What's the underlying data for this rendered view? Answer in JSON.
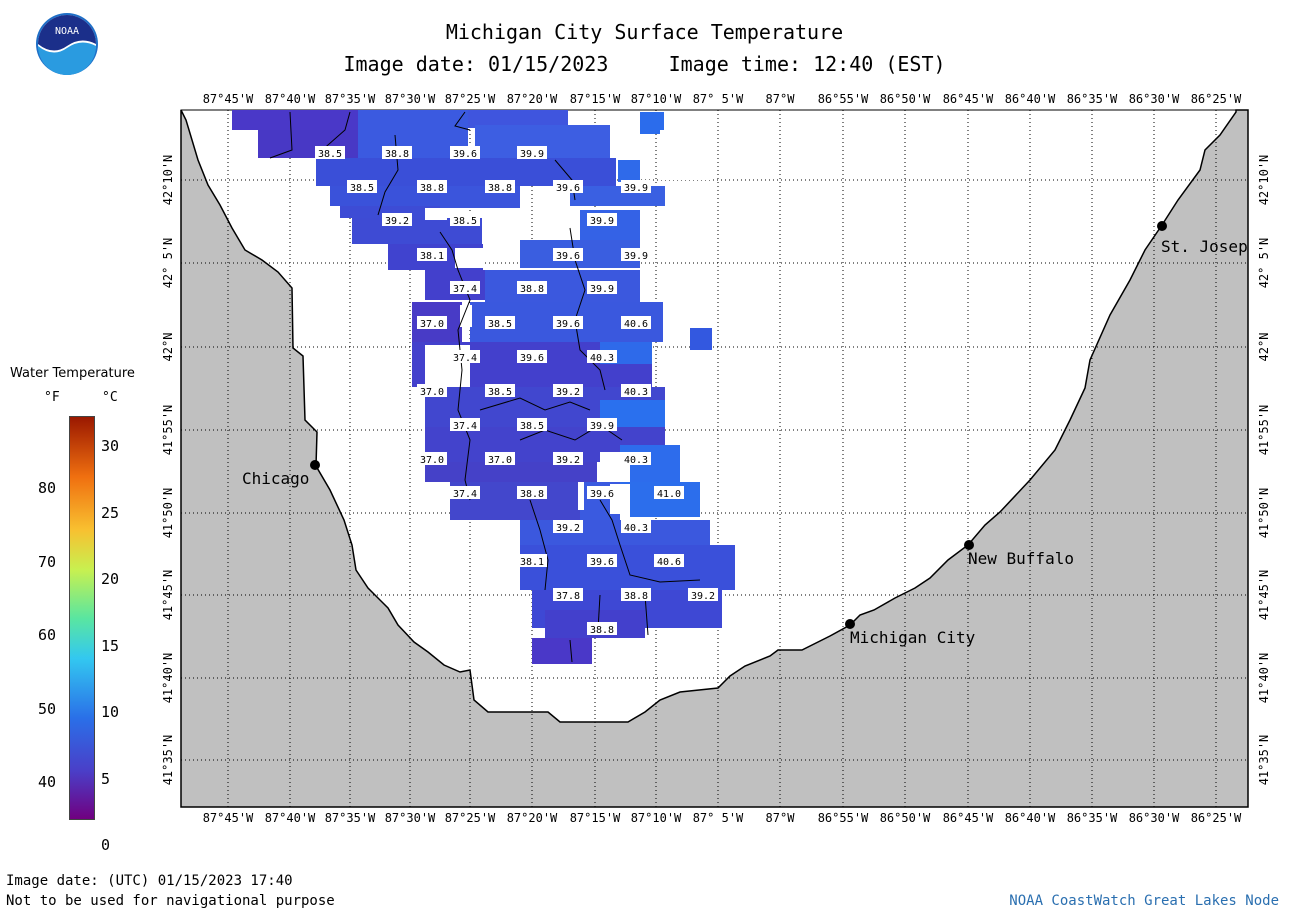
{
  "header": {
    "title": "Michigan City Surface Temperature",
    "date_line": "Image date: 01/15/2023     Image time: 12:40 (EST)"
  },
  "logo": {
    "text": "NOAA"
  },
  "legend": {
    "title": "Water Temperature",
    "unit_f": "°F",
    "unit_c": "°C",
    "f_ticks": [
      "80",
      "70",
      "60",
      "50",
      "40"
    ],
    "c_ticks": [
      "30",
      "25",
      "20",
      "15",
      "10",
      "5",
      "0"
    ]
  },
  "axes": {
    "lon_labels": [
      "87°45'W",
      "87°40'W",
      "87°35'W",
      "87°30'W",
      "87°25'W",
      "87°20'W",
      "87°15'W",
      "87°10'W",
      "87° 5'W",
      "87°W",
      "86°55'W",
      "86°50'W",
      "86°45'W",
      "86°40'W",
      "86°35'W",
      "86°30'W",
      "86°25'W"
    ],
    "lat_labels": [
      "42°10'N",
      "42° 5'N",
      "42°N",
      "41°55'N",
      "41°50'N",
      "41°45'N",
      "41°40'N",
      "41°35'N"
    ]
  },
  "cities": [
    {
      "name": "Chicago"
    },
    {
      "name": "St. Josep"
    },
    {
      "name": "New Buffalo"
    },
    {
      "name": "Michigan City"
    }
  ],
  "temperatures": [
    "38.5",
    "38.8",
    "39.6",
    "39.9",
    "38.5",
    "38.8",
    "38.8",
    "39.6",
    "39.9",
    "39.2",
    "38.5",
    "39.9",
    "38.1",
    "39.6",
    "39.9",
    "37.4",
    "38.8",
    "39.9",
    "37.0",
    "38.5",
    "39.6",
    "40.6",
    "37.4",
    "39.6",
    "40.3",
    "37.0",
    "38.5",
    "39.2",
    "40.3",
    "37.4",
    "38.5",
    "39.9",
    "37.0",
    "37.0",
    "39.2",
    "40.3",
    "37.4",
    "38.8",
    "39.6",
    "41.0",
    "39.2",
    "40.3",
    "38.1",
    "39.6",
    "40.6",
    "37.8",
    "38.8",
    "39.2",
    "38.8"
  ],
  "footer": {
    "utc_line": "Image date: (UTC) 01/15/2023  17:40",
    "disclaimer": "Not to be used for navigational purpose",
    "credit": "NOAA CoastWatch Great Lakes Node"
  }
}
